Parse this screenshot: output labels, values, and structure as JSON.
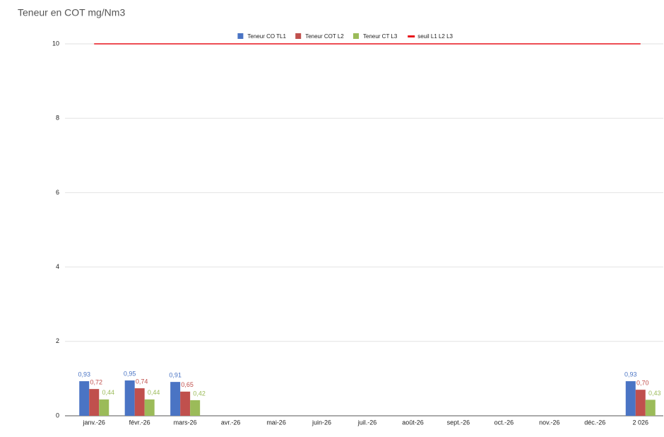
{
  "chart_data": {
    "type": "bar",
    "title": "Teneur en COT mg/Nm3",
    "categories": [
      "janv.-26",
      "févr.-26",
      "mars-26",
      "avr.-26",
      "mai-26",
      "juin-26",
      "juil.-26",
      "août-26",
      "sept.-26",
      "oct.-26",
      "nov.-26",
      "déc.-26",
      "2 026"
    ],
    "series": [
      {
        "name": "Teneur CO TL1",
        "color": "#4a74c4",
        "type": "bar",
        "values": [
          0.93,
          0.95,
          0.91,
          null,
          null,
          null,
          null,
          null,
          null,
          null,
          null,
          null,
          0.93
        ],
        "value_labels": [
          "0,93",
          "0,95",
          "0,91",
          null,
          null,
          null,
          null,
          null,
          null,
          null,
          null,
          null,
          "0,93"
        ]
      },
      {
        "name": "Teneur COT L2",
        "color": "#c0504d",
        "type": "bar",
        "values": [
          0.72,
          0.74,
          0.65,
          null,
          null,
          null,
          null,
          null,
          null,
          null,
          null,
          null,
          0.7
        ],
        "value_labels": [
          "0,72",
          "0,74",
          "0,65",
          null,
          null,
          null,
          null,
          null,
          null,
          null,
          null,
          null,
          "0,70"
        ]
      },
      {
        "name": "Teneur CT L3",
        "color": "#9bbb59",
        "type": "bar",
        "values": [
          0.44,
          0.44,
          0.42,
          null,
          null,
          null,
          null,
          null,
          null,
          null,
          null,
          null,
          0.43
        ],
        "value_labels": [
          "0,44",
          "0,44",
          "0,42",
          null,
          null,
          null,
          null,
          null,
          null,
          null,
          null,
          null,
          "0,43"
        ]
      },
      {
        "name": "seuil L1 L2 L3",
        "color": "#e8141b",
        "type": "line",
        "values": [
          10,
          10,
          10,
          10,
          10,
          10,
          10,
          10,
          10,
          10,
          10,
          10,
          10
        ]
      }
    ],
    "ylim": [
      0,
      10
    ],
    "yticks": [
      0,
      2,
      4,
      6,
      8,
      10
    ],
    "grid": true,
    "legend": "top"
  }
}
